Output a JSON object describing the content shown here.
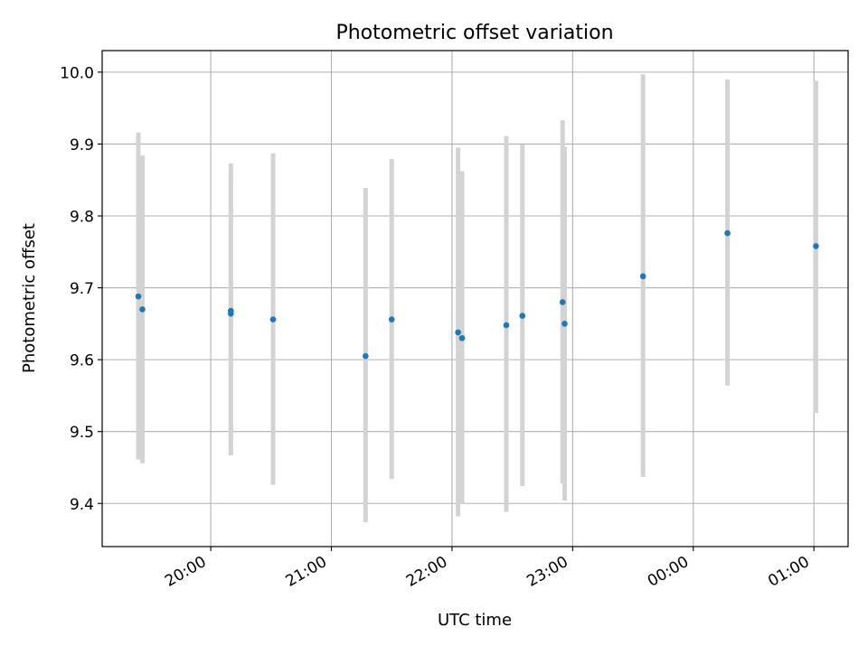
{
  "chart_data": {
    "type": "scatter",
    "title": "Photometric offset variation",
    "xlabel": "UTC time",
    "ylabel": "Photometric offset",
    "xlim": [
      "19:06",
      "01:17"
    ],
    "ylim": [
      9.34,
      10.03
    ],
    "x_ticks": [
      {
        "time": "20:00",
        "label": "20:00"
      },
      {
        "time": "21:00",
        "label": "21:00"
      },
      {
        "time": "22:00",
        "label": "22:00"
      },
      {
        "time": "23:00",
        "label": "23:00"
      },
      {
        "time": "00:00",
        "label": "00:00"
      },
      {
        "time": "01:00",
        "label": "01:00"
      }
    ],
    "y_ticks": [
      9.4,
      9.5,
      9.6,
      9.7,
      9.8,
      9.9,
      10.0
    ],
    "y_tick_labels": [
      "9.4",
      "9.5",
      "9.6",
      "9.7",
      "9.8",
      "9.9",
      "10.0"
    ],
    "grid": true,
    "point_color": "#1f77b4",
    "errorbar_color": "#d3d3d3",
    "points": [
      {
        "time": "19:24",
        "y": 9.688,
        "lo": 9.461,
        "hi": 9.916
      },
      {
        "time": "19:26",
        "y": 9.67,
        "lo": 9.456,
        "hi": 9.884
      },
      {
        "time": "20:10",
        "y": 9.668,
        "lo": 9.467,
        "hi": 9.873
      },
      {
        "time": "20:10",
        "y": 9.664,
        "lo": 9.472,
        "hi": 9.855
      },
      {
        "time": "20:31",
        "y": 9.656,
        "lo": 9.426,
        "hi": 9.887
      },
      {
        "time": "21:17",
        "y": 9.605,
        "lo": 9.374,
        "hi": 9.839
      },
      {
        "time": "21:30",
        "y": 9.656,
        "lo": 9.434,
        "hi": 9.879
      },
      {
        "time": "22:03",
        "y": 9.638,
        "lo": 9.382,
        "hi": 9.895
      },
      {
        "time": "22:05",
        "y": 9.63,
        "lo": 9.399,
        "hi": 9.862
      },
      {
        "time": "22:27",
        "y": 9.648,
        "lo": 9.388,
        "hi": 9.911
      },
      {
        "time": "22:35",
        "y": 9.661,
        "lo": 9.424,
        "hi": 9.899
      },
      {
        "time": "22:55",
        "y": 9.68,
        "lo": 9.428,
        "hi": 9.933
      },
      {
        "time": "22:56",
        "y": 9.65,
        "lo": 9.404,
        "hi": 9.896
      },
      {
        "time": "23:35",
        "y": 9.716,
        "lo": 9.437,
        "hi": 9.997
      },
      {
        "time": "00:17",
        "y": 9.776,
        "lo": 9.564,
        "hi": 9.99
      },
      {
        "time": "01:01",
        "y": 9.758,
        "lo": 9.526,
        "hi": 9.988
      }
    ]
  }
}
